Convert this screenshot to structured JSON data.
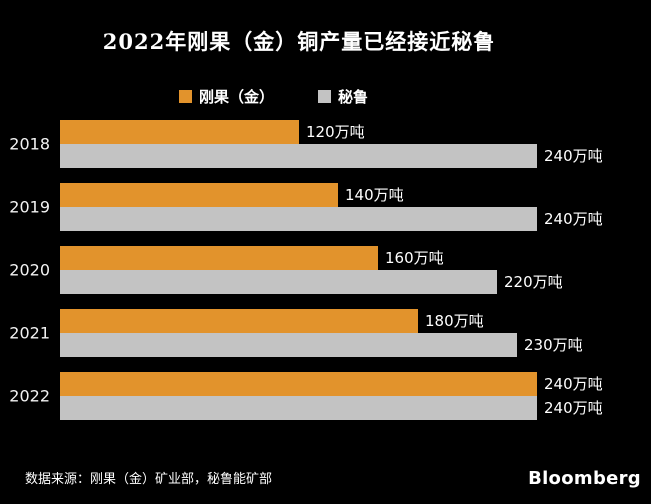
{
  "page": {
    "background": "#000000",
    "text_color": "#FFFFFF"
  },
  "title": "2022年刚果（金）铜产量已经接近秘鲁",
  "legend": {
    "items": [
      {
        "label": "刚果（金）",
        "color": "#E2932C"
      },
      {
        "label": "秘鲁",
        "color": "#C3C3C3"
      }
    ]
  },
  "chart_data": {
    "type": "bar",
    "orientation": "horizontal",
    "title": "2022年刚果（金）铜产量已经接近秘鲁",
    "categories": [
      "2018",
      "2019",
      "2020",
      "2021",
      "2022"
    ],
    "series": [
      {
        "name": "刚果（金）",
        "color": "#E2932C",
        "values": [
          120,
          140,
          160,
          180,
          240
        ],
        "value_labels": [
          "120万吨",
          "140万吨",
          "160万吨",
          "180万吨",
          "240万吨"
        ]
      },
      {
        "name": "秘鲁",
        "color": "#C3C3C3",
        "values": [
          240,
          240,
          220,
          230,
          240
        ],
        "value_labels": [
          "240万吨",
          "240万吨",
          "220万吨",
          "230万吨",
          "240万吨"
        ]
      }
    ],
    "unit": "万吨",
    "value_axis_max": 240,
    "grid": false,
    "legend_position": "top",
    "bar_labels": "outside-end"
  },
  "footer": {
    "source": "数据来源：刚果（金）矿业部，秘鲁能矿部",
    "brand": "Bloomberg"
  }
}
